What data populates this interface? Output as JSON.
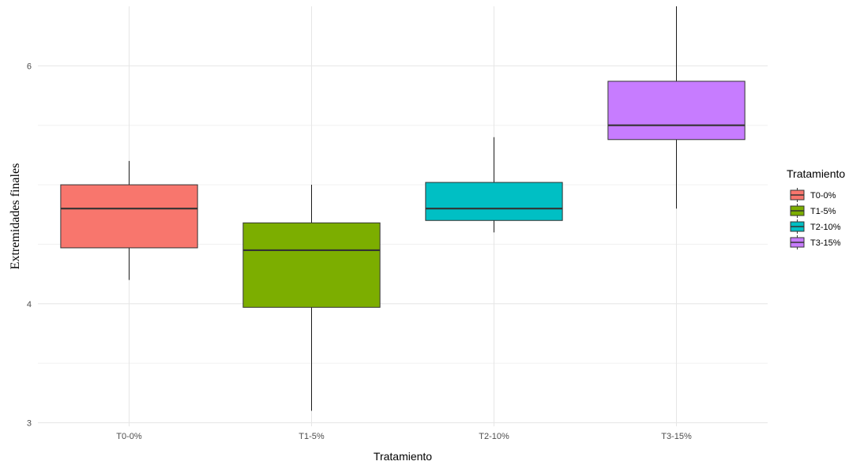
{
  "chart_data": {
    "type": "boxplot",
    "title": "",
    "xlabel": "Tratamiento",
    "ylabel": "Extremidades finales",
    "ylim": [
      2.97,
      6.5
    ],
    "yticks": [
      3,
      4,
      6
    ],
    "y_minor_gridlines": [
      3.5,
      4.5,
      5,
      5.5
    ],
    "grid": true,
    "categories": [
      "T0-0%",
      "T1-5%",
      "T2-10%",
      "T3-15%"
    ],
    "boxes": [
      {
        "name": "T0-0%",
        "color": "#F8766D",
        "min": 4.2,
        "q1": 4.47,
        "median": 4.8,
        "q3": 5.0,
        "max": 5.2
      },
      {
        "name": "T1-5%",
        "color": "#7CAE00",
        "min": 3.1,
        "q1": 3.97,
        "median": 4.45,
        "q3": 4.68,
        "max": 5.0
      },
      {
        "name": "T2-10%",
        "color": "#00BFC4",
        "min": 4.6,
        "q1": 4.7,
        "median": 4.8,
        "q3": 5.02,
        "max": 5.4
      },
      {
        "name": "T3-15%",
        "color": "#C77CFF",
        "min": 4.8,
        "q1": 5.38,
        "median": 5.5,
        "q3": 5.87,
        "max": 6.5
      }
    ],
    "legend": {
      "title": "Tratamiento",
      "position": "right",
      "entries": [
        "T0-0%",
        "T1-5%",
        "T2-10%",
        "T3-15%"
      ]
    }
  }
}
